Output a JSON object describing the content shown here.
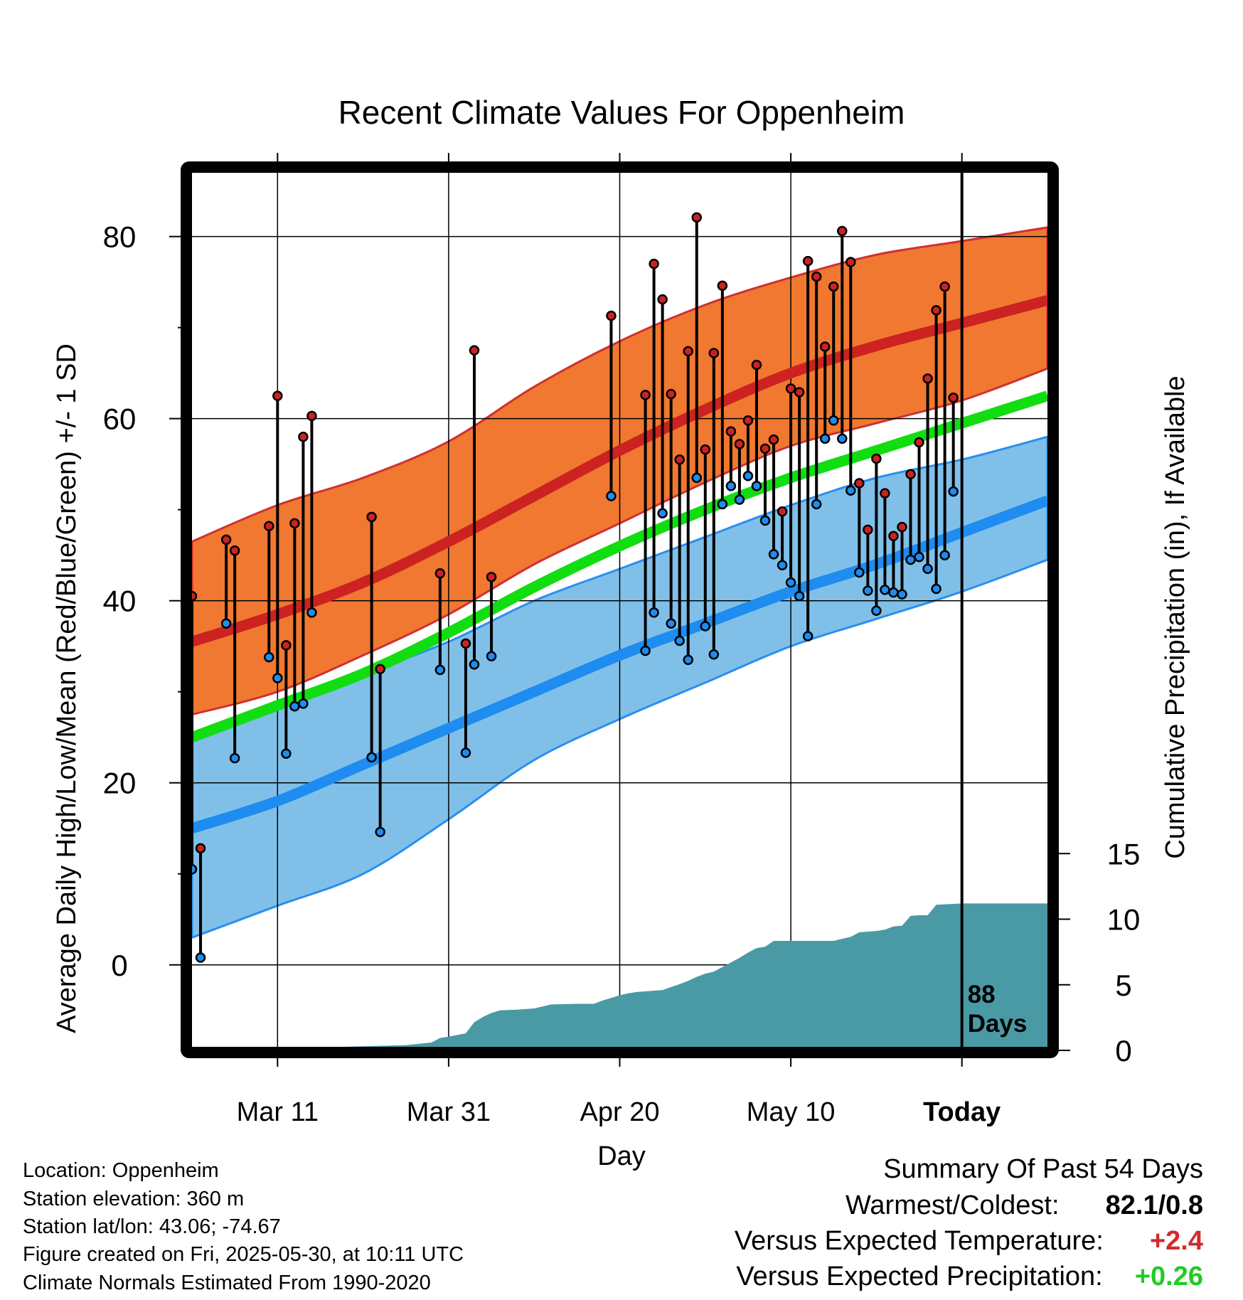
{
  "chart_data": {
    "type": "line",
    "title": "Recent Climate Values For Oppenheim",
    "xlabel": "Day",
    "ylabel": "Average Daily High/Low/Mean (Red/Blue/Green) +/- 1 SD",
    "y2label": "Cumulative Precipitation (in), If Available",
    "x_tick_labels": [
      "Mar 11",
      "Mar 31",
      "Apr 20",
      "May 10",
      "Today"
    ],
    "x_tick_days": [
      10,
      30,
      50,
      70,
      90
    ],
    "x_range": [
      0,
      100
    ],
    "ylim": [
      -9,
      87
    ],
    "y_ticks": [
      0,
      20,
      40,
      60,
      80
    ],
    "y2_ticks": [
      0,
      5,
      10,
      15
    ],
    "y2lim": [
      0,
      20
    ],
    "grid": true,
    "today_marker_label": "88 Days",
    "colors": {
      "high_band": "#f07830",
      "high_mean": "#cc2222",
      "low_band": "#80c0e8",
      "low_mean": "#1e8cf0",
      "mean": "#11dd11",
      "precip": "#4a9aa5",
      "high_dot": "#cc2222",
      "low_dot": "#1e8cf0"
    },
    "normals": {
      "day": [
        0,
        10,
        20,
        30,
        40,
        50,
        60,
        70,
        80,
        90,
        100
      ],
      "high_mean": [
        35.5,
        38.5,
        42,
        46.5,
        51.5,
        56.5,
        61,
        65,
        68,
        70.5,
        73
      ],
      "high_upper": [
        46.5,
        50.5,
        53.5,
        57.5,
        63.5,
        68.5,
        72.5,
        75.5,
        78,
        79.5,
        81
      ],
      "high_lower": [
        27.5,
        30,
        34,
        38.5,
        44,
        48.5,
        53,
        57,
        59.5,
        62,
        65.5
      ],
      "low_mean": [
        15,
        18,
        22,
        26,
        30,
        34,
        37.5,
        41,
        44,
        47.5,
        51
      ],
      "low_upper": [
        25,
        29,
        32,
        35.5,
        40,
        43.5,
        47,
        50.5,
        53.5,
        55.5,
        58
      ],
      "low_lower": [
        3,
        6.5,
        10,
        16,
        22.5,
        27,
        31,
        35,
        38,
        41,
        44.5
      ],
      "mean": [
        25,
        28.5,
        32,
        36.5,
        41.5,
        46,
        50,
        53.5,
        56.5,
        59.5,
        62.5
      ]
    },
    "daily": [
      {
        "day": 0,
        "high": 40.5,
        "low": 10.5
      },
      {
        "day": 1,
        "high": 12.8,
        "low": 0.8
      },
      {
        "day": 4,
        "high": 46.7,
        "low": 37.5
      },
      {
        "day": 5,
        "high": 45.5,
        "low": 22.7
      },
      {
        "day": 9,
        "high": 48.2,
        "low": 33.8
      },
      {
        "day": 10,
        "high": 62.5,
        "low": 31.5
      },
      {
        "day": 11,
        "high": 35.1,
        "low": 23.2
      },
      {
        "day": 12,
        "high": 48.5,
        "low": 28.4
      },
      {
        "day": 13,
        "high": 58.0,
        "low": 28.7
      },
      {
        "day": 14,
        "high": 60.3,
        "low": 38.7
      },
      {
        "day": 21,
        "high": 49.2,
        "low": 22.8
      },
      {
        "day": 22,
        "high": 32.5,
        "low": 14.6
      },
      {
        "day": 29,
        "high": 43.0,
        "low": 32.4
      },
      {
        "day": 32,
        "high": 35.3,
        "low": 23.3
      },
      {
        "day": 33,
        "high": 67.5,
        "low": 33.0
      },
      {
        "day": 35,
        "high": 42.6,
        "low": 33.9
      },
      {
        "day": 49,
        "high": 71.3,
        "low": 51.5
      },
      {
        "day": 53,
        "high": 62.6,
        "low": 34.5
      },
      {
        "day": 54,
        "high": 77.0,
        "low": 38.7
      },
      {
        "day": 55,
        "high": 73.1,
        "low": 49.6
      },
      {
        "day": 56,
        "high": 62.7,
        "low": 37.5
      },
      {
        "day": 57,
        "high": 55.5,
        "low": 35.6
      },
      {
        "day": 58,
        "high": 67.4,
        "low": 33.5
      },
      {
        "day": 59,
        "high": 82.1,
        "low": 53.5
      },
      {
        "day": 60,
        "high": 56.6,
        "low": 37.2
      },
      {
        "day": 61,
        "high": 67.2,
        "low": 34.1
      },
      {
        "day": 62,
        "high": 74.6,
        "low": 50.6
      },
      {
        "day": 63,
        "high": 58.6,
        "low": 52.6
      },
      {
        "day": 64,
        "high": 57.2,
        "low": 51.1
      },
      {
        "day": 65,
        "high": 59.8,
        "low": 53.7
      },
      {
        "day": 66,
        "high": 65.9,
        "low": 52.6
      },
      {
        "day": 67,
        "high": 56.7,
        "low": 48.8
      },
      {
        "day": 68,
        "high": 57.7,
        "low": 45.1
      },
      {
        "day": 69,
        "high": 49.8,
        "low": 43.9
      },
      {
        "day": 70,
        "high": 63.3,
        "low": 42.0
      },
      {
        "day": 71,
        "high": 62.9,
        "low": 40.5
      },
      {
        "day": 72,
        "high": 77.3,
        "low": 36.1
      },
      {
        "day": 73,
        "high": 75.6,
        "low": 50.6
      },
      {
        "day": 74,
        "high": 67.9,
        "low": 57.8
      },
      {
        "day": 75,
        "high": 74.5,
        "low": 59.8
      },
      {
        "day": 76,
        "high": 80.6,
        "low": 57.8
      },
      {
        "day": 77,
        "high": 77.2,
        "low": 52.1
      },
      {
        "day": 78,
        "high": 52.9,
        "low": 43.1
      },
      {
        "day": 79,
        "high": 47.8,
        "low": 41.1
      },
      {
        "day": 80,
        "high": 55.6,
        "low": 38.9
      },
      {
        "day": 81,
        "high": 51.8,
        "low": 41.2
      },
      {
        "day": 82,
        "high": 47.1,
        "low": 40.9
      },
      {
        "day": 83,
        "high": 48.1,
        "low": 40.7
      },
      {
        "day": 84,
        "high": 53.9,
        "low": 44.5
      },
      {
        "day": 85,
        "high": 57.4,
        "low": 44.8
      },
      {
        "day": 86,
        "high": 64.4,
        "low": 43.5
      },
      {
        "day": 87,
        "high": 71.9,
        "low": 41.3
      },
      {
        "day": 88,
        "high": 74.5,
        "low": 45.0
      },
      {
        "day": 89,
        "high": 62.3,
        "low": 52.0
      }
    ],
    "precip_cumulative": {
      "day": [
        0,
        5,
        7,
        10,
        15,
        18,
        19,
        25,
        28,
        29,
        30,
        32,
        33,
        34,
        35,
        36,
        38,
        39,
        40,
        42,
        45,
        47,
        48,
        49,
        50,
        51,
        52,
        53,
        55,
        57,
        58,
        59,
        60,
        61,
        62,
        63,
        64,
        65,
        66,
        67,
        68,
        69,
        70,
        75,
        76,
        77,
        78,
        80,
        81,
        82,
        83,
        84,
        85,
        86,
        87,
        90,
        100
      ],
      "value": [
        0,
        0,
        0.05,
        0.1,
        0.1,
        0.15,
        0.3,
        0.4,
        0.6,
        0.95,
        1.05,
        1.3,
        2.15,
        2.55,
        2.85,
        3.05,
        3.1,
        3.15,
        3.2,
        3.5,
        3.55,
        3.55,
        3.8,
        4.0,
        4.2,
        4.35,
        4.45,
        4.5,
        4.6,
        5.05,
        5.3,
        5.6,
        5.85,
        6.0,
        6.35,
        6.7,
        7.05,
        7.45,
        7.8,
        7.9,
        8.35,
        8.35,
        8.35,
        8.35,
        8.5,
        8.65,
        9.0,
        9.1,
        9.2,
        9.45,
        9.5,
        10.25,
        10.3,
        10.3,
        11.1,
        11.2,
        11.2
      ]
    }
  },
  "info": {
    "location": "Location: Oppenheim",
    "elevation": "Station elevation: 360 m",
    "latlon": "Station lat/lon: 43.06; -74.67",
    "created": "Figure created on Fri, 2025-05-30, at 10:11 UTC",
    "normals": "Climate Normals Estimated From 1990-2020"
  },
  "summary": {
    "title": "Summary Of Past 54 Days",
    "warmest_coldest_label": "Warmest/Coldest:",
    "warmest_coldest_value": "82.1/0.8",
    "temp_label": "Versus Expected Temperature:",
    "temp_value": "+2.4",
    "temp_color": "#d42a2a",
    "precip_label": "Versus Expected Precipitation:",
    "precip_value": "+0.26",
    "precip_color": "#22cc22"
  }
}
